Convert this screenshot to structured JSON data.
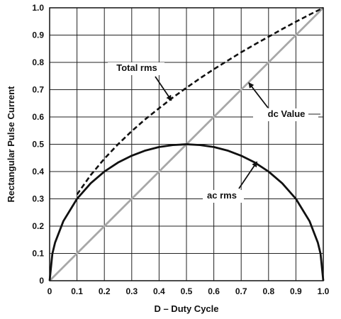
{
  "chart_data": {
    "type": "line",
    "title": "",
    "xlabel": "D – Duty Cycle",
    "ylabel": "Rectangular Pulse Current",
    "xlim": [
      0,
      1
    ],
    "ylim": [
      0,
      1
    ],
    "xticks": [
      "0",
      "0.1",
      "0.2",
      "0.3",
      "0.4",
      "0.5",
      "0.6",
      "0.7",
      "0.8",
      "0.9",
      "1.0"
    ],
    "yticks": [
      "0",
      "0.1",
      "0.2",
      "0.3",
      "0.4",
      "0.5",
      "0.6",
      "0.7",
      "0.8",
      "0.9",
      "1.0"
    ],
    "grid": true,
    "series": [
      {
        "name": "Total rms",
        "style": "dashed",
        "color": "#111111",
        "x": [
          0.1,
          0.15,
          0.2,
          0.25,
          0.3,
          0.35,
          0.4,
          0.45,
          0.5,
          0.55,
          0.6,
          0.65,
          0.7,
          0.75,
          0.8,
          0.85,
          0.9,
          0.95,
          1.0
        ],
        "y": [
          0.316,
          0.387,
          0.447,
          0.5,
          0.548,
          0.592,
          0.632,
          0.671,
          0.707,
          0.742,
          0.775,
          0.806,
          0.837,
          0.866,
          0.894,
          0.922,
          0.949,
          0.975,
          1.0
        ]
      },
      {
        "name": "dc Value",
        "style": "solid",
        "color": "#a8a8a8",
        "x": [
          0,
          1
        ],
        "y": [
          0,
          1
        ]
      },
      {
        "name": "ac rms",
        "style": "solid",
        "color": "#111111",
        "x": [
          0,
          0.01,
          0.02,
          0.05,
          0.1,
          0.15,
          0.2,
          0.25,
          0.3,
          0.35,
          0.4,
          0.45,
          0.5,
          0.55,
          0.6,
          0.65,
          0.7,
          0.75,
          0.8,
          0.85,
          0.9,
          0.95,
          0.98,
          0.99,
          1.0
        ],
        "y": [
          0,
          0.099,
          0.14,
          0.218,
          0.3,
          0.357,
          0.4,
          0.433,
          0.458,
          0.477,
          0.49,
          0.497,
          0.5,
          0.497,
          0.49,
          0.477,
          0.458,
          0.433,
          0.4,
          0.357,
          0.3,
          0.218,
          0.14,
          0.099,
          0
        ]
      }
    ],
    "annotations": [
      {
        "text": "Total rms",
        "points_to": [
          0.45,
          0.671
        ]
      },
      {
        "text": "dc Value",
        "points_to": [
          0.72,
          0.72
        ]
      },
      {
        "text": "ac rms",
        "points_to": [
          0.75,
          0.433
        ]
      }
    ]
  }
}
